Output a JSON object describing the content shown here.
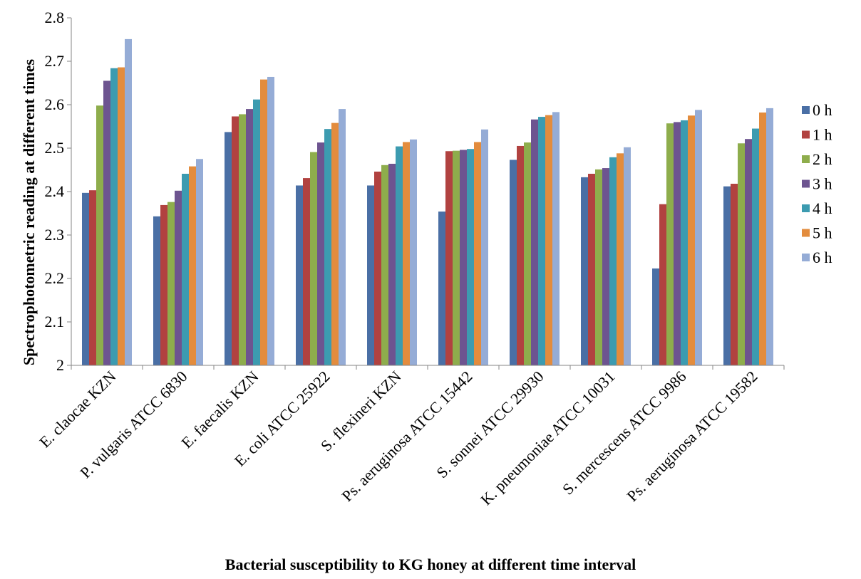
{
  "chart_data": {
    "type": "bar",
    "title": "",
    "xlabel": "Bacterial susceptibility to KG honey at different time interval",
    "ylabel": "Spectrophotometric reading at different times",
    "ylim": [
      2,
      2.8
    ],
    "yticks": [
      "2",
      "2.1",
      "2.2",
      "2.3",
      "2.4",
      "2.5",
      "2.6",
      "2.7",
      "2.8"
    ],
    "grid": false,
    "legend_position": "right",
    "categories": [
      "E. claocae KZN",
      "P. vulgaris  ATCC 6830",
      "E. faecalis KZN",
      "E. coli ATCC 25922",
      "S. flexineri KZN",
      "Ps. aeruginosa ATCC 15442",
      "S. sonnei ATCC 29930",
      "K. pneumoniae ATCC 10031",
      "S. mercescens ATCC 9986",
      "Ps. aeruginosa ATCC 19582"
    ],
    "series": [
      {
        "name": "0 h",
        "color": "#4a6fa5",
        "values": [
          2.397,
          2.343,
          2.537,
          2.414,
          2.414,
          2.354,
          2.473,
          2.433,
          2.223,
          2.412
        ]
      },
      {
        "name": "1 h",
        "color": "#b14240",
        "values": [
          2.403,
          2.369,
          2.573,
          2.431,
          2.446,
          2.493,
          2.505,
          2.441,
          2.371,
          2.418
        ]
      },
      {
        "name": "2 h",
        "color": "#8ead4c",
        "values": [
          2.598,
          2.376,
          2.578,
          2.491,
          2.461,
          2.494,
          2.513,
          2.451,
          2.557,
          2.511
        ]
      },
      {
        "name": "3 h",
        "color": "#6d5490",
        "values": [
          2.655,
          2.402,
          2.59,
          2.513,
          2.464,
          2.496,
          2.566,
          2.454,
          2.56,
          2.521
        ]
      },
      {
        "name": "4 h",
        "color": "#3c9bb0",
        "values": [
          2.684,
          2.441,
          2.612,
          2.544,
          2.504,
          2.498,
          2.572,
          2.479,
          2.564,
          2.545
        ]
      },
      {
        "name": "5 h",
        "color": "#e38c3d",
        "values": [
          2.686,
          2.458,
          2.658,
          2.558,
          2.514,
          2.514,
          2.576,
          2.488,
          2.575,
          2.582
        ]
      },
      {
        "name": "6 h",
        "color": "#95acd6",
        "values": [
          2.751,
          2.475,
          2.664,
          2.59,
          2.52,
          2.543,
          2.583,
          2.502,
          2.588,
          2.592
        ]
      }
    ]
  }
}
